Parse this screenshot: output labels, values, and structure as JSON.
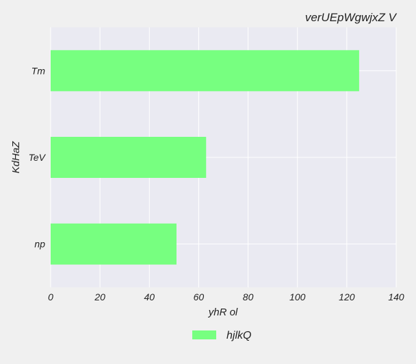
{
  "chart_data": {
    "type": "bar",
    "orientation": "horizontal",
    "title": "verUEpWgwjxZ V",
    "xlabel": "yhR ol",
    "ylabel": "KdHaZ",
    "categories": [
      "Tm",
      "TeV",
      "np"
    ],
    "series": [
      {
        "name": "hjlkQ",
        "values": [
          125,
          63,
          51
        ],
        "color": "#77ff80"
      }
    ],
    "xlim": [
      0,
      140
    ],
    "xticks": [
      0,
      20,
      40,
      60,
      80,
      100,
      120,
      140
    ],
    "grid": true,
    "legend": "bottom-center",
    "plot_background": "#eaeaf2"
  }
}
